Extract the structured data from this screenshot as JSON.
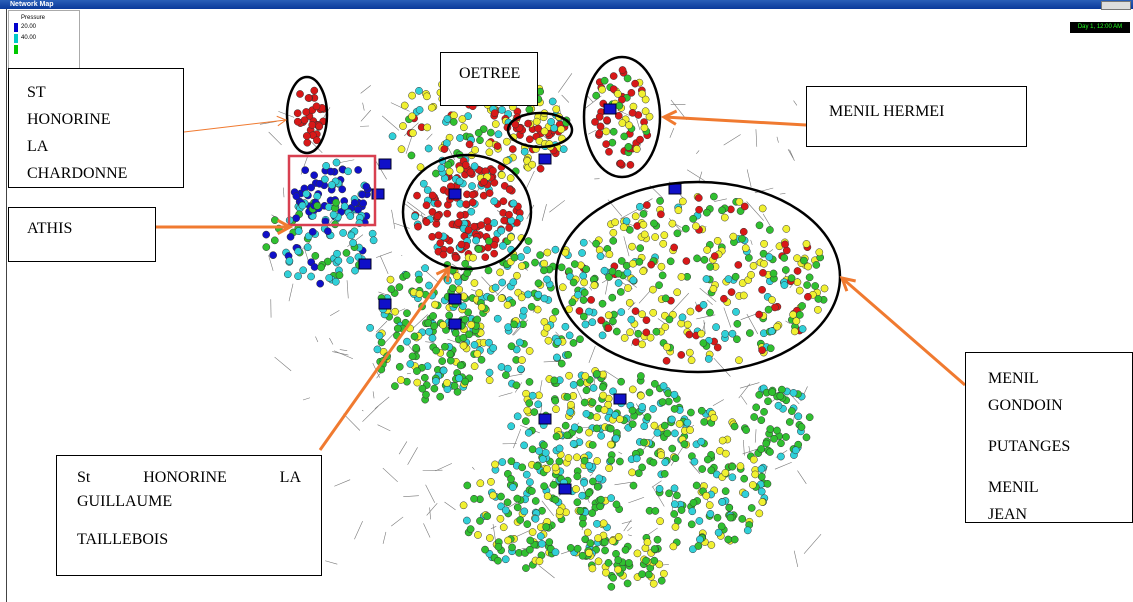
{
  "window": {
    "title": "Network Map",
    "clock": "Day 1, 12:00 AM"
  },
  "legend": {
    "title": "Pressure",
    "items": [
      {
        "label": "20.00",
        "color": "#0000cc"
      },
      {
        "label": "40.00",
        "color": "#00c8c8"
      }
    ]
  },
  "callouts": [
    {
      "id": "chardonne",
      "paragraphs": [
        "ST HONORINE LA CHARDONNE"
      ]
    },
    {
      "id": "oetree",
      "paragraphs": [
        "OETREE"
      ]
    },
    {
      "id": "hermei",
      "paragraphs": [
        "MENIL HERMEI"
      ]
    },
    {
      "id": "athis",
      "paragraphs": [
        "ATHIS"
      ]
    },
    {
      "id": "gondoin",
      "paragraphs": [
        "MENIL GONDOIN",
        "PUTANGES",
        "MENIL JEAN"
      ]
    },
    {
      "id": "guillaume",
      "paragraphs": [
        "St HONORINE LA GUILLAUME",
        "TAILLEBOIS"
      ]
    }
  ]
}
